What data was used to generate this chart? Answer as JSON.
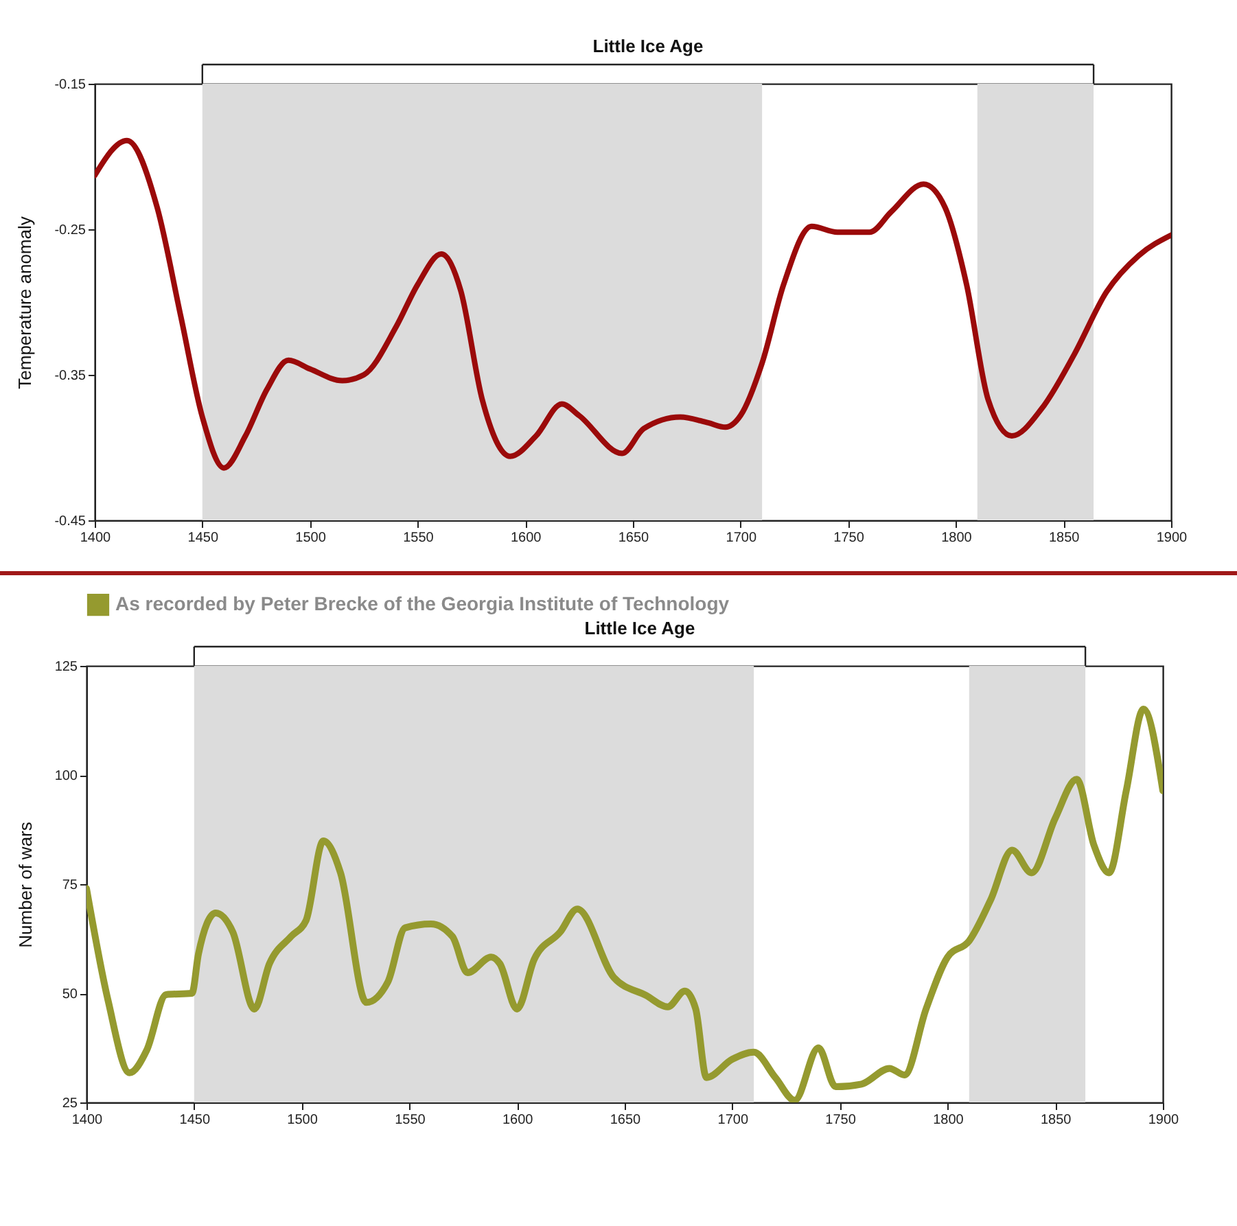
{
  "chart_data": [
    {
      "type": "line",
      "ylabel": "Temperature anomaly",
      "annotations": [
        "Little Ice Age"
      ],
      "x": [
        1400,
        1415,
        1429,
        1440,
        1450,
        1460,
        1470,
        1480,
        1490,
        1500,
        1515,
        1525,
        1540,
        1550,
        1561,
        1570,
        1580,
        1593,
        1605,
        1617,
        1625,
        1645,
        1655,
        1672,
        1685,
        1693,
        1700,
        1710,
        1720,
        1733,
        1745,
        1760,
        1770,
        1785,
        1795,
        1805,
        1815,
        1826,
        1840,
        1855,
        1870,
        1885,
        1900
      ],
      "series": [
        {
          "color": "#9b0a0a",
          "values": [
            -0.213,
            -0.189,
            -0.235,
            -0.31,
            -0.379,
            -0.414,
            -0.392,
            -0.36,
            -0.34,
            -0.346,
            -0.354,
            -0.35,
            -0.317,
            -0.288,
            -0.267,
            -0.292,
            -0.367,
            -0.406,
            -0.392,
            -0.37,
            -0.378,
            -0.404,
            -0.387,
            -0.379,
            -0.383,
            -0.386,
            -0.378,
            -0.342,
            -0.288,
            -0.248,
            -0.252,
            -0.252,
            -0.238,
            -0.219,
            -0.235,
            -0.288,
            -0.367,
            -0.392,
            -0.373,
            -0.336,
            -0.293,
            -0.268,
            -0.254
          ]
        }
      ],
      "xlim": [
        1400,
        1900
      ],
      "xticks": [
        1400,
        1450,
        1500,
        1550,
        1600,
        1650,
        1700,
        1750,
        1800,
        1850,
        1900
      ],
      "ylim": [
        -0.45,
        -0.15
      ],
      "yticks": [
        -0.45,
        -0.35,
        -0.25,
        -0.15
      ],
      "bands": [
        {
          "axis": "x",
          "from": 1450,
          "to": 1710,
          "color": "#dcdcdc"
        },
        {
          "axis": "x",
          "from": 1810,
          "to": 1864,
          "color": "#dcdcdc"
        }
      ],
      "grid": false
    },
    {
      "type": "line",
      "ylabel": "Number of wars",
      "annotations": [
        "Little Ice Age"
      ],
      "x": [
        1400,
        1410,
        1420,
        1428,
        1437,
        1449,
        1452,
        1460,
        1468,
        1478,
        1485,
        1495,
        1502,
        1510,
        1518,
        1530,
        1540,
        1548,
        1560,
        1570,
        1577,
        1588,
        1592,
        1600,
        1608,
        1620,
        1628,
        1645,
        1660,
        1670,
        1678,
        1683,
        1688,
        1700,
        1710,
        1720,
        1729,
        1740,
        1748,
        1760,
        1773,
        1780,
        1790,
        1800,
        1810,
        1820,
        1830,
        1839,
        1850,
        1860,
        1868,
        1875,
        1883,
        1891,
        1900
      ],
      "series": [
        {
          "name": "As recorded by Peter Brecke of the Georgia Institute of Technology",
          "color": "#959a2f",
          "values": [
            74,
            48.4,
            31.8,
            37,
            49.7,
            50,
            59,
            68.4,
            64,
            46.4,
            56.8,
            63,
            66.7,
            84.9,
            77.6,
            47.9,
            52.6,
            65,
            65.9,
            63,
            54.7,
            58.3,
            56.8,
            46.4,
            57.8,
            64,
            69.3,
            53.6,
            49.5,
            46.9,
            50.5,
            46.4,
            30.7,
            34.9,
            36.5,
            30.7,
            25.5,
            37.5,
            28.6,
            29.2,
            32.8,
            31.3,
            46.4,
            58.3,
            62,
            71.4,
            82.8,
            77.6,
            90.1,
            99,
            83.9,
            77.6,
            96.4,
            115.1,
            96.4
          ]
        }
      ],
      "xlim": [
        1400,
        1900
      ],
      "xticks": [
        1400,
        1450,
        1500,
        1550,
        1600,
        1650,
        1700,
        1750,
        1800,
        1850,
        1900
      ],
      "ylim": [
        25,
        125
      ],
      "yticks": [
        25,
        50,
        75,
        100,
        125
      ],
      "bands": [
        {
          "axis": "x",
          "from": 1450,
          "to": 1710,
          "color": "#dcdcdc"
        },
        {
          "axis": "x",
          "from": 1810,
          "to": 1864,
          "color": "#dcdcdc"
        }
      ],
      "grid": false,
      "legend": "top left"
    }
  ]
}
